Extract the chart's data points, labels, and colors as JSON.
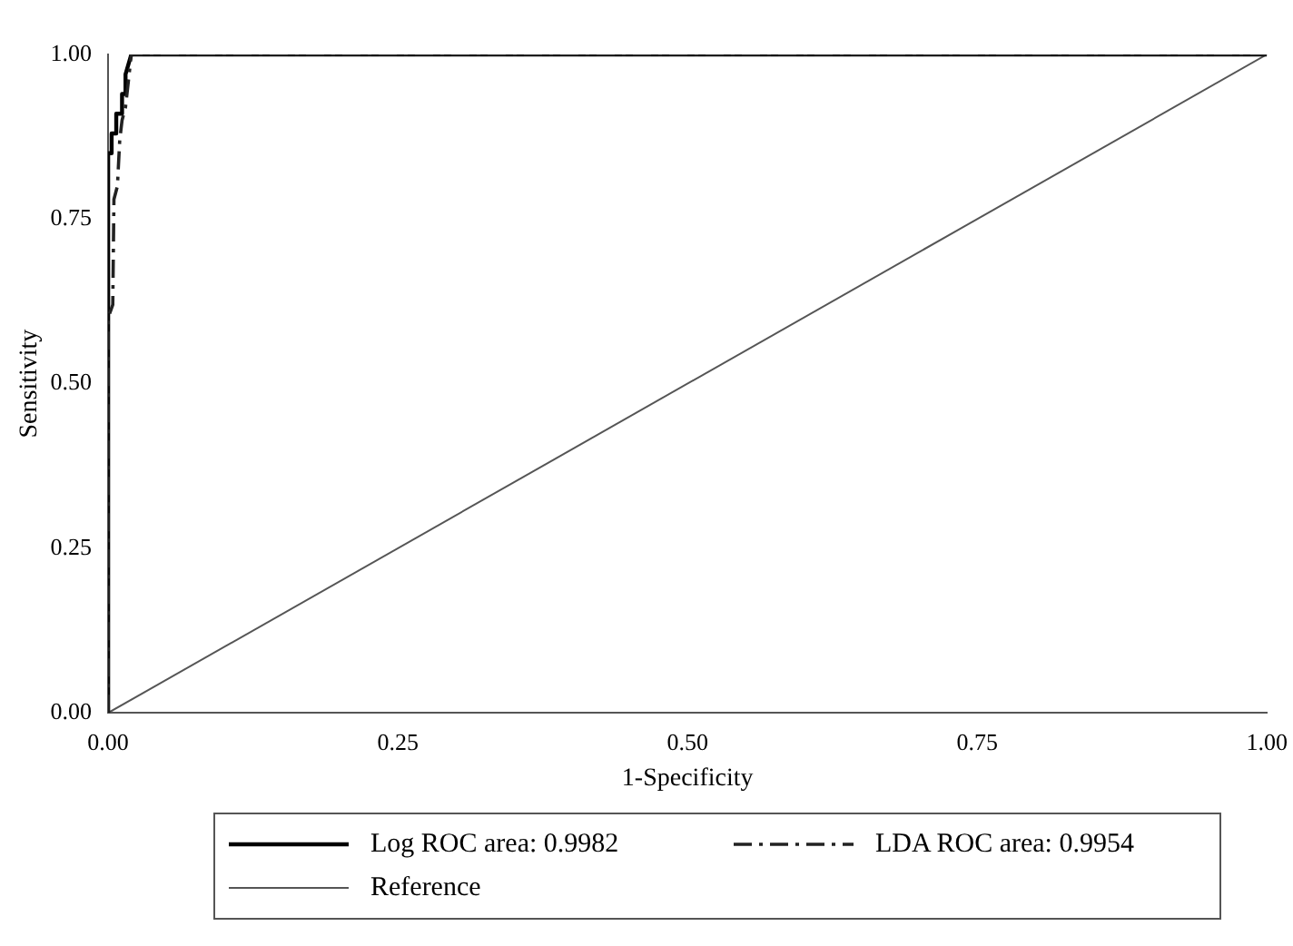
{
  "chart_data": {
    "type": "line",
    "xlabel": "1-Specificity",
    "ylabel": "Sensitivity",
    "xlim": [
      0,
      1
    ],
    "ylim": [
      0,
      1
    ],
    "xticks": [
      {
        "value": 0,
        "label": "0.00"
      },
      {
        "value": 0.25,
        "label": "0.25"
      },
      {
        "value": 0.5,
        "label": "0.50"
      },
      {
        "value": 0.75,
        "label": "0.75"
      },
      {
        "value": 1,
        "label": "1.00"
      }
    ],
    "yticks": [
      {
        "value": 0,
        "label": "0.00"
      },
      {
        "value": 0.25,
        "label": "0.25"
      },
      {
        "value": 0.5,
        "label": "0.50"
      },
      {
        "value": 0.75,
        "label": "0.75"
      },
      {
        "value": 1,
        "label": "1.00"
      }
    ],
    "grid": false,
    "legend": "bottom",
    "marker": "none",
    "series": [
      {
        "name": "Log ROC area: 0.9982",
        "color": "#000000",
        "line_style": "solid",
        "x": [
          0,
          0,
          0.003,
          0.003,
          0.007,
          0.007,
          0.012,
          0.012,
          0.015,
          0.015,
          0.02,
          1
        ],
        "values": [
          0,
          0.85,
          0.85,
          0.88,
          0.88,
          0.91,
          0.91,
          0.94,
          0.94,
          0.97,
          1,
          1
        ]
      },
      {
        "name": "LDA ROC area: 0.9954",
        "color": "#222222",
        "line_style": "dashed",
        "x": [
          0,
          0,
          0.004,
          0.005,
          0.008,
          0.01,
          0.012,
          0.015,
          0.02,
          1
        ],
        "values": [
          0,
          0.6,
          0.62,
          0.78,
          0.8,
          0.87,
          0.9,
          0.92,
          1,
          1
        ]
      },
      {
        "name": "Reference",
        "color": "#555555",
        "line_style": "solid",
        "x": [
          0,
          1
        ],
        "values": [
          0,
          1
        ]
      }
    ]
  }
}
